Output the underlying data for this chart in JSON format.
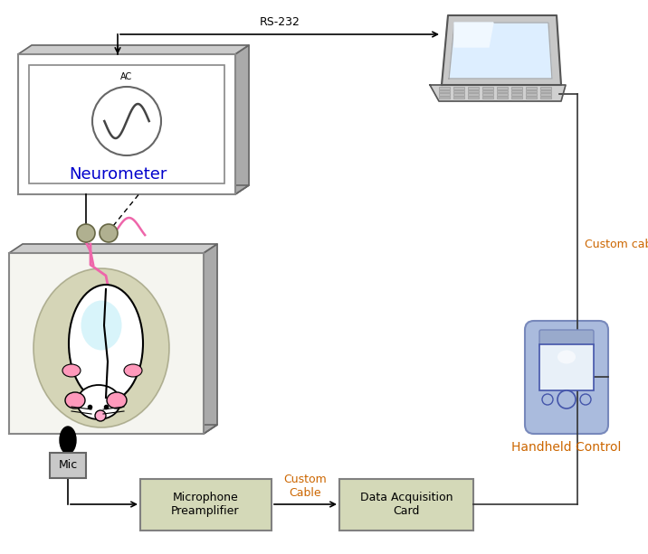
{
  "bg_color": "#ffffff",
  "label_color_orange": "#cc6600",
  "label_color_blue": "#0000cc",
  "neurometer_label": "Neurometer",
  "rs232_label": "RS-232",
  "custom_cable_label": "Custom cable",
  "handheld_label": "Handheld Control",
  "mic_label": "Mic",
  "preamp_label": "Microphone\nPreamplifier",
  "custom_cable2_label": "Custom\nCable",
  "daq_label": "Data Acquisition\nCard",
  "ac_label": "AC",
  "box_fill": "#d4d9b8",
  "box_edge": "#808080",
  "neuro_fill": "#ffffff",
  "neuro_edge": "#888888",
  "neuro_side_fill": "#aaaaaa",
  "neuro_top_fill": "#cccccc",
  "neuro_bottom_fill": "#888888",
  "inner_box_edge": "#888888",
  "cage_fill": "#ffffff",
  "cage_side_fill": "#aaaaaa",
  "cage_bottom_fill": "#888888",
  "cylinder_fill": "#c8c8a0",
  "cylinder_edge": "#999977",
  "mouse_body": "#ffffff",
  "mouse_ear": "#ff99bb",
  "electrode_fill": "#b0b090",
  "electrode_edge": "#666644",
  "mic_fill": "#c8c8c8",
  "handheld_fill": "#aabbdd",
  "handheld_edge": "#7788bb",
  "line_color": "#333333",
  "laptop_frame": "#cccccc",
  "laptop_screen": "#ddeeff",
  "laptop_kbd": "#bbbbbb"
}
